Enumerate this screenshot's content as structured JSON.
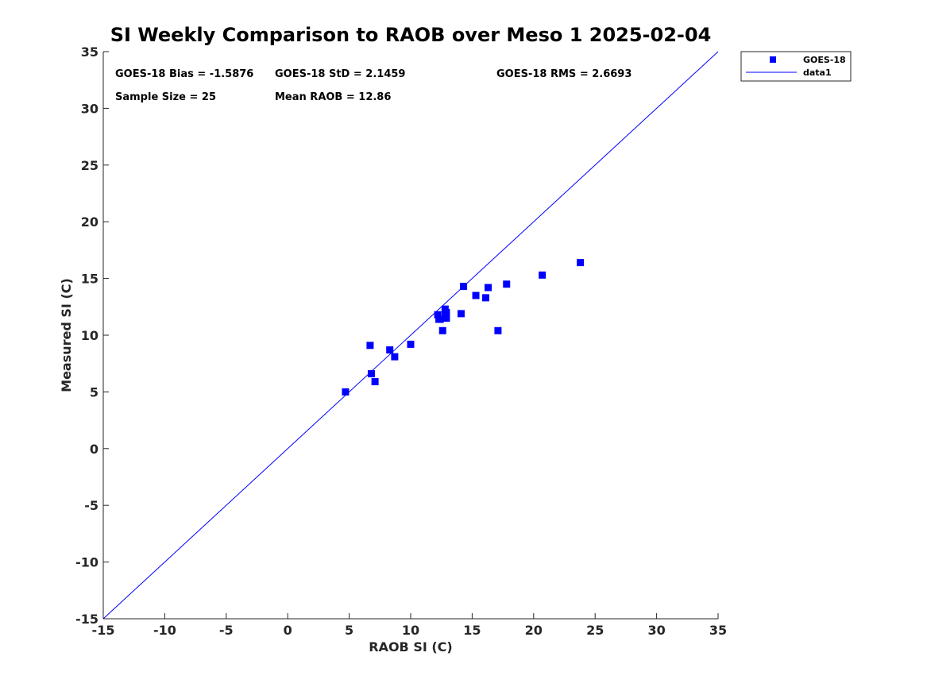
{
  "chart_data": {
    "type": "scatter",
    "title": "SI Weekly Comparison to RAOB over Meso 1 2025-02-04",
    "xlabel": "RAOB SI (C)",
    "ylabel": "Measured SI (C)",
    "xlim": [
      -15,
      35
    ],
    "ylim": [
      -15,
      35
    ],
    "xticks": [
      -15,
      -10,
      -5,
      0,
      5,
      10,
      15,
      20,
      25,
      30,
      35
    ],
    "yticks": [
      -15,
      -10,
      -5,
      0,
      5,
      10,
      15,
      20,
      25,
      30,
      35
    ],
    "grid": false,
    "legend_position": "outside top-right",
    "colors": {
      "series": "#0000ff",
      "axis": "#262626"
    },
    "stats": [
      "GOES-18 Bias = -1.5876",
      "GOES-18 StD = 2.1459",
      "GOES-18 RMS = 2.6693",
      "Sample Size = 25",
      "Mean RAOB = 12.86"
    ],
    "series": [
      {
        "name": "GOES-18",
        "kind": "points",
        "x": [
          4.7,
          6.7,
          6.8,
          7.1,
          8.3,
          8.7,
          10.0,
          12.2,
          12.3,
          12.4,
          12.6,
          12.8,
          12.8,
          12.9,
          12.9,
          12.9,
          14.1,
          14.3,
          15.3,
          16.1,
          16.3,
          17.1,
          17.8,
          20.7,
          23.8
        ],
        "y": [
          5.0,
          9.1,
          6.6,
          5.9,
          8.7,
          8.1,
          9.2,
          11.8,
          11.4,
          11.4,
          10.4,
          12.3,
          11.8,
          12.0,
          11.5,
          11.7,
          11.9,
          14.3,
          13.5,
          13.3,
          14.2,
          10.4,
          14.5,
          15.3,
          16.4
        ]
      },
      {
        "name": "data1",
        "kind": "line",
        "x": [
          -15,
          35
        ],
        "y": [
          -15,
          35
        ]
      }
    ]
  }
}
